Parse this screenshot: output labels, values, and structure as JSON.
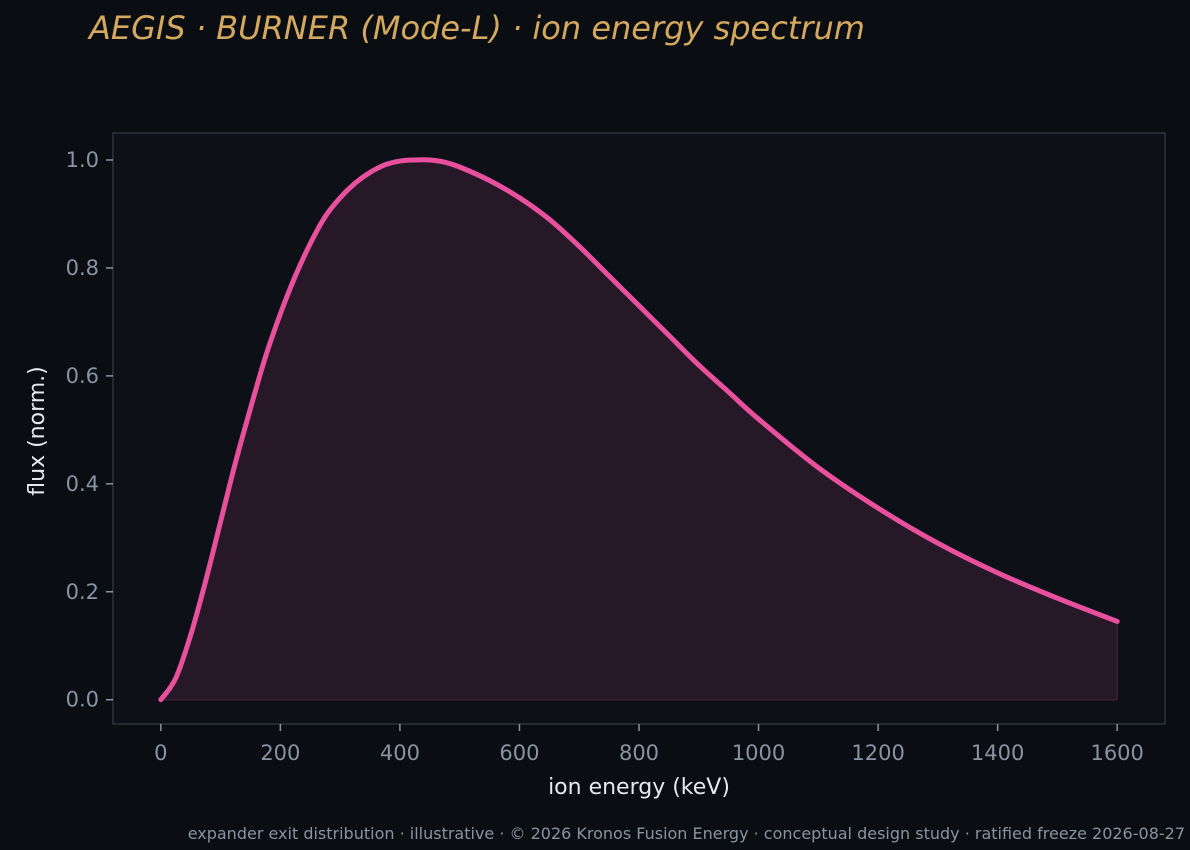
{
  "header": {
    "title": "AEGIS · BURNER (Mode-L)  ·  ion energy spectrum"
  },
  "footer": {
    "caption": "expander exit distribution · illustrative · © 2026 Kronos Fusion Energy · conceptual design study · ratified freeze 2026-08-27"
  },
  "colors": {
    "page_background": "#0a0d12",
    "plot_background": "#0d1017",
    "plot_border": "#2e333c",
    "title": "#d4a95f",
    "tick_text": "#8a93a3",
    "axis_label_text": "#e6e8ec",
    "series_line": "#e8509e",
    "series_fill": "#261827"
  },
  "chart_data": {
    "type": "area",
    "title": "AEGIS · BURNER (Mode-L)  ·  ion energy spectrum",
    "xlabel": "ion energy (keV)",
    "ylabel": "flux (norm.)",
    "xlim": [
      -80,
      1680
    ],
    "ylim": [
      -0.045,
      1.05
    ],
    "xticks": [
      0,
      200,
      400,
      600,
      800,
      1000,
      1200,
      1400,
      1600
    ],
    "yticks": [
      0.0,
      0.2,
      0.4,
      0.6,
      0.8,
      1.0
    ],
    "ytick_labels": [
      "0.0",
      "0.2",
      "0.4",
      "0.6",
      "0.8",
      "1.0"
    ],
    "grid": false,
    "legend": "none",
    "series": [
      {
        "x": [
          0,
          25,
          50,
          75,
          100,
          125,
          150,
          175,
          200,
          225,
          250,
          275,
          300,
          325,
          350,
          375,
          400,
          425,
          450,
          475,
          500,
          550,
          600,
          650,
          700,
          750,
          800,
          850,
          900,
          950,
          1000,
          1100,
          1200,
          1300,
          1400,
          1500,
          1600
        ],
        "y": [
          0.0,
          0.04,
          0.12,
          0.22,
          0.33,
          0.44,
          0.54,
          0.635,
          0.715,
          0.785,
          0.845,
          0.895,
          0.93,
          0.957,
          0.977,
          0.991,
          0.998,
          1.0,
          1.0,
          0.996,
          0.987,
          0.962,
          0.93,
          0.89,
          0.84,
          0.785,
          0.73,
          0.675,
          0.62,
          0.57,
          0.52,
          0.43,
          0.355,
          0.29,
          0.235,
          0.188,
          0.145
        ]
      }
    ]
  }
}
